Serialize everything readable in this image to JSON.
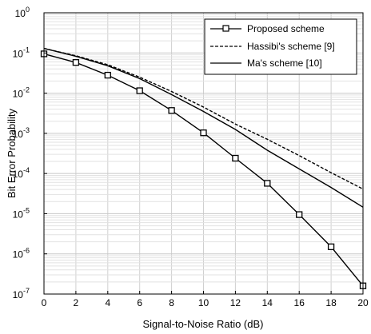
{
  "chart_data": {
    "type": "line",
    "xlabel": "Signal-to-Noise Ratio (dB)",
    "ylabel": "Bit Error Probability",
    "xlim": [
      0,
      20
    ],
    "ylim": [
      1e-07,
      1
    ],
    "yscale": "log",
    "grid": true,
    "legend_position": "top-right",
    "x_ticks": [
      0,
      2,
      4,
      6,
      8,
      10,
      12,
      14,
      16,
      18,
      20
    ],
    "y_tick_exponents": [
      0,
      -1,
      -2,
      -3,
      -4,
      -5,
      -6,
      -7
    ],
    "series": [
      {
        "name": "Proposed scheme",
        "style": "solid",
        "marker": "square",
        "color": "#000000",
        "x": [
          0,
          2,
          4,
          6,
          8,
          10,
          12,
          14,
          16,
          18,
          20
        ],
        "y": [
          0.095,
          0.058,
          0.028,
          0.0115,
          0.0037,
          0.00103,
          0.00024,
          5.7e-05,
          9.5e-06,
          1.5e-06,
          1.6e-07
        ]
      },
      {
        "name": "Hassibi's scheme [9]",
        "style": "dashed",
        "marker": "none",
        "color": "#000000",
        "x": [
          0,
          2,
          4,
          6,
          8,
          10,
          12,
          14,
          16,
          18,
          20
        ],
        "y": [
          0.13,
          0.085,
          0.051,
          0.025,
          0.011,
          0.0045,
          0.0017,
          0.00071,
          0.00028,
          0.000105,
          4.1e-05
        ]
      },
      {
        "name": "Ma's scheme [10]",
        "style": "solid",
        "marker": "none",
        "color": "#000000",
        "x": [
          0,
          2,
          4,
          6,
          8,
          10,
          12,
          14,
          16,
          18,
          20
        ],
        "y": [
          0.13,
          0.083,
          0.048,
          0.023,
          0.0092,
          0.0035,
          0.00125,
          0.00038,
          0.00013,
          4.5e-05,
          1.45e-05
        ]
      }
    ]
  }
}
